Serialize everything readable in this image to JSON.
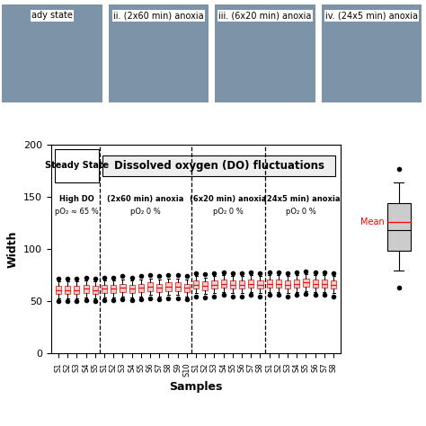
{
  "chart_data": {
    "type": "box",
    "x_label": "Samples",
    "y_label": "Width",
    "ylim": [
      0,
      200
    ],
    "yticks": [
      0,
      50,
      100,
      150,
      200
    ],
    "color": "#d9534f",
    "header_left": "Steady State",
    "header_right": "Dissolved oxygen (DO) fluctuations",
    "legend_mean_label": "Mean",
    "panels": [
      "ady state",
      "ii. (2x60 min) anoxia",
      "iii. (6x20 min) anoxia",
      "iv. (24x5 min) anoxia"
    ],
    "groups": [
      {
        "name": "High DO",
        "subtitle": "pO₂ ≈ 65 %",
        "categories": [
          "S1",
          "S2",
          "S3",
          "S4",
          "S5"
        ],
        "whislo": [
          53,
          53,
          53,
          54,
          53
        ],
        "q1": [
          57,
          57,
          57,
          58,
          57
        ],
        "med": [
          61,
          61,
          61,
          62,
          61
        ],
        "mean": [
          61,
          61,
          61,
          62,
          61
        ],
        "q3": [
          65,
          65,
          65,
          66,
          65
        ],
        "whishi": [
          69,
          69,
          69,
          70,
          69
        ],
        "flier_low": [
          50,
          50,
          50,
          51,
          50
        ],
        "flier_high": [
          72,
          72,
          72,
          73,
          72
        ]
      },
      {
        "name": "(2x60 min) anoxia",
        "subtitle": "pO₂ 0 %",
        "categories": [
          "S1",
          "S2",
          "S3",
          "S4",
          "S5",
          "S6",
          "S7",
          "S8",
          "S9",
          "S10"
        ],
        "whislo": [
          54,
          54,
          55,
          54,
          55,
          56,
          55,
          56,
          56,
          55
        ],
        "q1": [
          58,
          58,
          59,
          58,
          59,
          60,
          59,
          60,
          60,
          59
        ],
        "med": [
          62,
          62,
          63,
          62,
          63,
          64,
          63,
          64,
          64,
          63
        ],
        "mean": [
          62,
          62,
          63,
          62,
          63,
          64,
          63,
          64,
          64,
          63
        ],
        "q3": [
          66,
          66,
          67,
          66,
          67,
          68,
          67,
          68,
          68,
          67
        ],
        "whishi": [
          70,
          70,
          71,
          70,
          71,
          72,
          71,
          72,
          72,
          71
        ],
        "flier_low": [
          51,
          51,
          52,
          51,
          52,
          53,
          52,
          53,
          53,
          52
        ],
        "flier_high": [
          73,
          73,
          74,
          73,
          74,
          75,
          74,
          75,
          75,
          74
        ]
      },
      {
        "name": "(6x20 min) anoxia",
        "subtitle": "pO₂ 0 %",
        "categories": [
          "S1",
          "S2",
          "S3",
          "S4",
          "S5",
          "S6",
          "S7",
          "S8"
        ],
        "whislo": [
          58,
          57,
          58,
          59,
          58,
          58,
          59,
          58
        ],
        "q1": [
          62,
          61,
          62,
          63,
          62,
          62,
          63,
          62
        ],
        "med": [
          66,
          65,
          66,
          67,
          66,
          66,
          67,
          66
        ],
        "mean": [
          66,
          65,
          66,
          67,
          66,
          66,
          67,
          66
        ],
        "q3": [
          70,
          69,
          70,
          71,
          70,
          70,
          71,
          70
        ],
        "whishi": [
          74,
          73,
          74,
          75,
          74,
          74,
          75,
          74
        ],
        "flier_low": [
          55,
          54,
          55,
          56,
          55,
          55,
          56,
          55
        ],
        "flier_high": [
          77,
          76,
          77,
          78,
          77,
          77,
          78,
          77
        ]
      },
      {
        "name": "(24x5 min) anoxia",
        "subtitle": "pO₂ 0 %",
        "categories": [
          "S1",
          "S2",
          "S3",
          "S4",
          "S5",
          "S6",
          "S7",
          "S8"
        ],
        "whislo": [
          59,
          59,
          58,
          59,
          60,
          59,
          59,
          58
        ],
        "q1": [
          63,
          63,
          62,
          63,
          64,
          63,
          63,
          62
        ],
        "med": [
          67,
          67,
          66,
          67,
          68,
          67,
          67,
          66
        ],
        "mean": [
          67,
          67,
          66,
          67,
          68,
          67,
          67,
          66
        ],
        "q3": [
          71,
          71,
          70,
          71,
          72,
          71,
          71,
          70
        ],
        "whishi": [
          75,
          75,
          74,
          75,
          76,
          75,
          75,
          74
        ],
        "flier_low": [
          56,
          56,
          55,
          56,
          57,
          56,
          56,
          55
        ],
        "flier_high": [
          78,
          78,
          77,
          78,
          79,
          78,
          78,
          77
        ]
      }
    ]
  }
}
